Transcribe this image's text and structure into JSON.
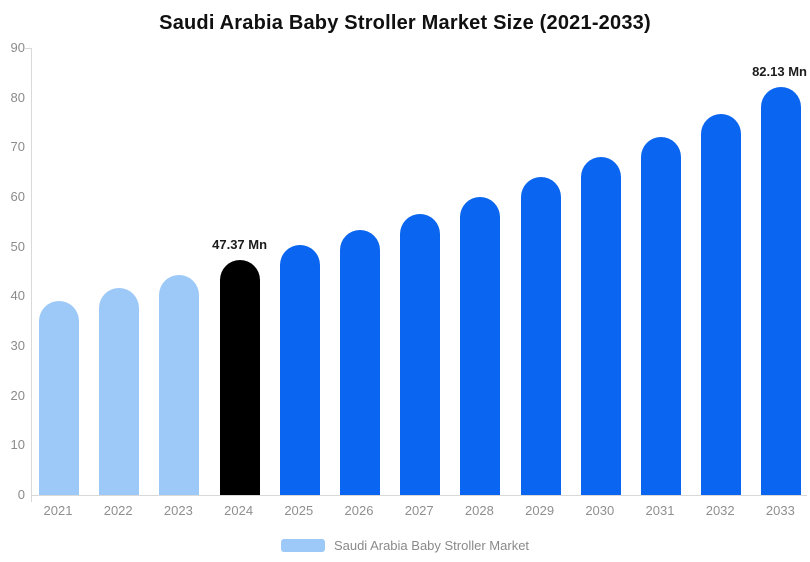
{
  "title": "Saudi Arabia Baby Stroller Market Size (2021-2033)",
  "legend": {
    "label": "Saudi Arabia Baby Stroller Market",
    "swatch_color": "#9dc9f8"
  },
  "colors": {
    "historical_bar": "#9dc9f8",
    "base_year_bar": "#000000",
    "forecast_bar": "#0a65f0"
  },
  "chart_data": {
    "type": "bar",
    "title": "Saudi Arabia Baby Stroller Market Size (2021-2033)",
    "series_name": "Saudi Arabia Baby Stroller Market",
    "unit": "Mn",
    "categories": [
      "2021",
      "2022",
      "2023",
      "2024",
      "2025",
      "2026",
      "2027",
      "2028",
      "2029",
      "2030",
      "2031",
      "2032",
      "2033"
    ],
    "values": [
      39.0,
      41.6,
      44.4,
      47.37,
      50.4,
      53.4,
      56.6,
      60.1,
      64.0,
      68.0,
      72.1,
      76.8,
      82.13
    ],
    "bar_colors": [
      "#9dc9f8",
      "#9dc9f8",
      "#9dc9f8",
      "#000000",
      "#0a65f0",
      "#0a65f0",
      "#0a65f0",
      "#0a65f0",
      "#0a65f0",
      "#0a65f0",
      "#0a65f0",
      "#0a65f0",
      "#0a65f0"
    ],
    "data_labels": [
      {
        "index": 3,
        "text": "47.37 Mn"
      },
      {
        "index": 12,
        "text": "82.13 Mn"
      }
    ],
    "xlabel": "",
    "ylabel": "",
    "ylim": [
      0,
      90
    ],
    "yticks": [
      0,
      10,
      20,
      30,
      40,
      50,
      60,
      70,
      80,
      90
    ],
    "grid": false,
    "legend_position": "bottom"
  }
}
